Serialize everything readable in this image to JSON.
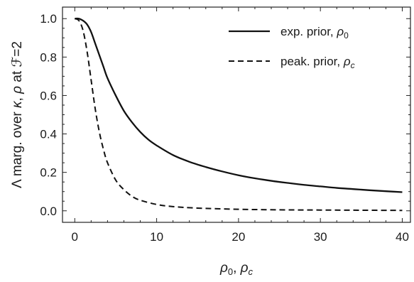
{
  "chart_data": {
    "type": "line",
    "xlabel_parts": [
      "ρ",
      "0",
      ", ",
      "ρ",
      "c"
    ],
    "ylabel_parts": [
      "Λ marg. over ",
      "κ",
      ", ",
      "ρ",
      " at ",
      "ℱ",
      "=2"
    ],
    "xlim": [
      -1.5,
      41
    ],
    "ylim": [
      -0.06,
      1.06
    ],
    "xticks": [
      0,
      10,
      20,
      30,
      40
    ],
    "xtick_labels": [
      "0",
      "10",
      "20",
      "30",
      "40"
    ],
    "yticks": [
      0.0,
      0.2,
      0.4,
      0.6,
      0.8,
      1.0
    ],
    "ytick_labels": [
      "0.0",
      "0.2",
      "0.4",
      "0.6",
      "0.8",
      "1.0"
    ],
    "legend_position": "top-right",
    "series": [
      {
        "legend_parts": [
          "exp. prior, ",
          "ρ",
          "0"
        ],
        "style": "solid",
        "color": "#111111",
        "x": [
          0,
          0.5,
          1,
          1.5,
          2,
          2.5,
          3,
          3.5,
          4,
          5,
          6,
          7,
          8,
          9,
          10,
          12,
          14,
          16,
          18,
          20,
          22,
          24,
          26,
          28,
          30,
          32,
          34,
          36,
          38,
          40
        ],
        "y": [
          1.0,
          1.0,
          0.99,
          0.97,
          0.93,
          0.87,
          0.81,
          0.75,
          0.69,
          0.6,
          0.52,
          0.46,
          0.41,
          0.37,
          0.34,
          0.29,
          0.255,
          0.228,
          0.205,
          0.185,
          0.169,
          0.156,
          0.145,
          0.135,
          0.127,
          0.119,
          0.113,
          0.107,
          0.102,
          0.097
        ]
      },
      {
        "legend_parts": [
          "peak. prior, ",
          "ρ",
          "c"
        ],
        "style": "dashed",
        "color": "#111111",
        "x": [
          0,
          0.5,
          1,
          1.5,
          2,
          2.5,
          3,
          3.5,
          4,
          5,
          6,
          7,
          8,
          10,
          12,
          15,
          20,
          25,
          30,
          35,
          40
        ],
        "y": [
          1.0,
          0.99,
          0.94,
          0.83,
          0.68,
          0.53,
          0.41,
          0.32,
          0.25,
          0.16,
          0.11,
          0.075,
          0.055,
          0.033,
          0.022,
          0.014,
          0.008,
          0.005,
          0.004,
          0.003,
          0.002
        ]
      }
    ]
  }
}
